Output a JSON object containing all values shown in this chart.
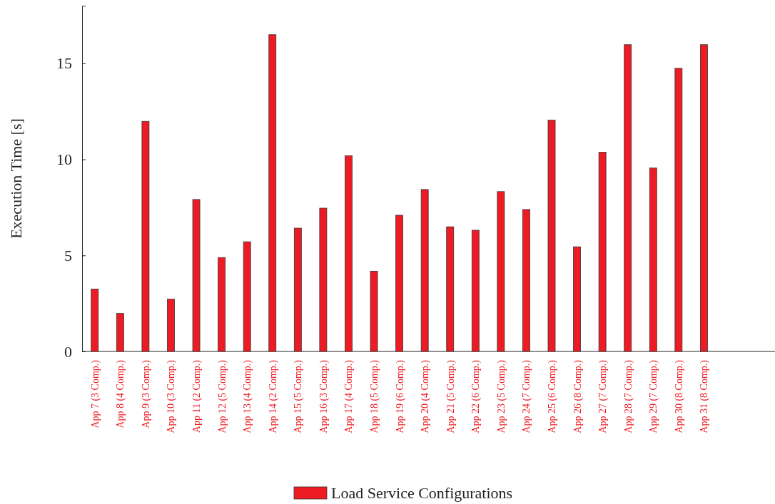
{
  "chart_data": {
    "type": "bar",
    "ylabel": "Execution Time [s]",
    "categories": [
      "App 7 (3 Comp.)",
      "App 8 (4 Comp.)",
      "App 9 (3 Comp.)",
      "App 10 (3 Comp.)",
      "App 11 (2 Comp.)",
      "App 12 (5 Comp.)",
      "App 13 (4 Comp.)",
      "App 14 (2 Comp.)",
      "App 15 (5 Comp.)",
      "App 16 (3 Comp.)",
      "App 17 (4 Comp.)",
      "App 18 (5 Comp.)",
      "App 19 (6 Comp.)",
      "App 20 (4 Comp.)",
      "App 21 (5 Comp.)",
      "App 22 (6 Comp.)",
      "App 23 (5 Comp.)",
      "App 24 (7 Comp.)",
      "App 25 (6 Comp.)",
      "App 26 (8 Comp.)",
      "App 27 (7 Comp.)",
      "App 28 (7 Comp.)",
      "App 29 (7 Comp.)",
      "App 30 (8 Comp.)",
      "App 31 (8 Comp.)"
    ],
    "series": [
      {
        "name": "Load Service Configurations",
        "color": "#ed1c24",
        "values": [
          3.25,
          1.98,
          11.98,
          2.72,
          7.91,
          4.89,
          5.71,
          16.49,
          6.42,
          7.46,
          10.19,
          4.18,
          7.09,
          8.43,
          6.49,
          6.31,
          8.32,
          7.39,
          12.05,
          5.45,
          10.37,
          15.97,
          9.55,
          14.74,
          15.97
        ]
      }
    ],
    "ylim": [
      0,
      18
    ],
    "yticks": [
      0,
      5,
      10,
      15
    ],
    "grid": false,
    "legend": "bottom"
  }
}
